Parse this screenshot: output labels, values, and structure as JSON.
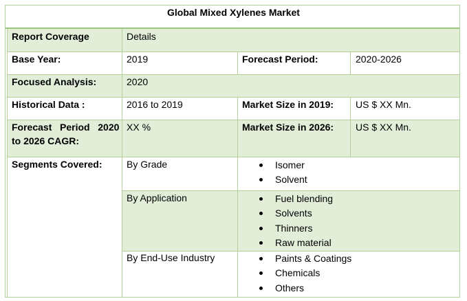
{
  "title": "Global Mixed Xylenes Market",
  "rows": {
    "report_coverage": {
      "label": "Report Coverage",
      "value": "Details"
    },
    "base_year": {
      "label": "Base Year:",
      "value": "2019",
      "label2": "Forecast Period:",
      "value2": "2020-2026"
    },
    "focused_analysis": {
      "label": "Focused Analysis:",
      "value": "2020"
    },
    "historical_data": {
      "label": "Historical Data :",
      "value": "2016 to 2019",
      "label2": "Market Size in 2019:",
      "value2": "US $ XX Mn."
    },
    "cagr": {
      "label_line1": "Forecast   Period   2020",
      "label_line2": "to 2026 CAGR:",
      "value": "XX %",
      "label2": "Market Size in 2026:",
      "value2": "US $ XX Mn."
    }
  },
  "segments": {
    "label": "Segments Covered:",
    "groups": [
      {
        "name": "By Grade",
        "items": [
          "Isomer",
          "Solvent"
        ]
      },
      {
        "name": "By Application",
        "items": [
          "Fuel blending",
          "Solvents",
          "Thinners",
          "Raw material"
        ]
      },
      {
        "name": "By End-Use Industry",
        "items": [
          "Paints & Coatings",
          "Chemicals",
          "Others"
        ]
      }
    ]
  }
}
